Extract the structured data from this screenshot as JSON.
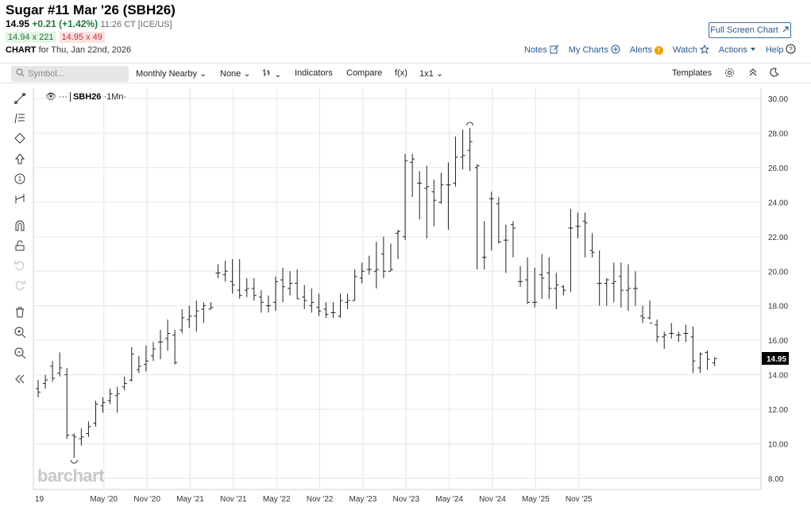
{
  "header": {
    "title": "Sugar #11 Mar '26 (SBH26)",
    "last": "14.95",
    "change": "+0.21 (+1.42%)",
    "time": "11:26 CT [ICE/US]",
    "bid": "14.94 x 221",
    "ask": "14.95 x 49",
    "chart_label": "CHART",
    "chart_for": "for Thu, Jan 22nd, 2026"
  },
  "buttons": {
    "fullscreen": "Full Screen Chart"
  },
  "actions": {
    "notes": "Notes",
    "my_charts": "My Charts",
    "alerts": "Alerts",
    "alerts_badge": "!",
    "watch": "Watch",
    "actions": "Actions",
    "help": "Help"
  },
  "toolbar": {
    "symbol_placeholder": "Symbol...",
    "period": "Monthly Nearby",
    "overlay": "None",
    "indicators": "Indicators",
    "compare": "Compare",
    "fx": "f(x)",
    "layout": "1x1",
    "templates": "Templates"
  },
  "series_label": {
    "eye": "👁",
    "dots": "···",
    "symbol": "SBH26",
    "interval": "·1Mn·"
  },
  "watermark": "barchart",
  "colors": {
    "bar": "#222222",
    "grid": "#e6e6e6",
    "last_price_bg": "#000000",
    "link": "#2b5b8a"
  },
  "chart_data": {
    "type": "ohlc",
    "interval": "monthly",
    "ylim": [
      7,
      31
    ],
    "y_ticks": [
      "8.00",
      "10.00",
      "12.00",
      "14.00",
      "16.00",
      "18.00",
      "20.00",
      "22.00",
      "24.00",
      "26.00",
      "28.00",
      "30.00"
    ],
    "x_ticks": [
      "19",
      "May '20",
      "Nov '20",
      "May '21",
      "Nov '21",
      "May '22",
      "Nov '22",
      "May '23",
      "Nov '23",
      "May '24",
      "Nov '24",
      "May '25",
      "Nov '25"
    ],
    "last_price_label": "14.95",
    "grid": true,
    "bars": [
      {
        "o": 13.2,
        "h": 13.7,
        "l": 12.7,
        "c": 13.0
      },
      {
        "o": 13.5,
        "h": 14.0,
        "l": 13.2,
        "c": 13.7
      },
      {
        "o": 14.5,
        "h": 14.8,
        "l": 13.6,
        "c": 13.8
      },
      {
        "o": 14.1,
        "h": 15.3,
        "l": 13.9,
        "c": 14.4
      },
      {
        "o": 14.0,
        "h": 14.4,
        "l": 10.3,
        "c": 10.5
      },
      {
        "o": 10.5,
        "h": 10.6,
        "l": 9.2,
        "c": 10.4
      },
      {
        "o": 10.3,
        "h": 10.9,
        "l": 9.9,
        "c": 10.4
      },
      {
        "o": 10.6,
        "h": 11.3,
        "l": 10.4,
        "c": 11.0
      },
      {
        "o": 11.2,
        "h": 12.5,
        "l": 11.0,
        "c": 12.3
      },
      {
        "o": 12.2,
        "h": 12.7,
        "l": 11.8,
        "c": 12.4
      },
      {
        "o": 12.5,
        "h": 13.2,
        "l": 12.3,
        "c": 12.9
      },
      {
        "o": 12.8,
        "h": 13.3,
        "l": 11.8,
        "c": 12.9
      },
      {
        "o": 13.3,
        "h": 13.9,
        "l": 13.1,
        "c": 13.5
      },
      {
        "o": 13.7,
        "h": 15.6,
        "l": 13.6,
        "c": 15.2
      },
      {
        "o": 14.3,
        "h": 15.1,
        "l": 14.1,
        "c": 14.5
      },
      {
        "o": 14.6,
        "h": 15.7,
        "l": 14.2,
        "c": 14.8
      },
      {
        "o": 15.1,
        "h": 15.9,
        "l": 14.8,
        "c": 15.5
      },
      {
        "o": 15.9,
        "h": 16.6,
        "l": 14.9,
        "c": 15.9
      },
      {
        "o": 16.1,
        "h": 17.2,
        "l": 15.4,
        "c": 16.4
      },
      {
        "o": 16.3,
        "h": 16.6,
        "l": 14.6,
        "c": 14.7
      },
      {
        "o": 16.6,
        "h": 17.8,
        "l": 16.4,
        "c": 17.3
      },
      {
        "o": 17.2,
        "h": 18.0,
        "l": 16.7,
        "c": 17.4
      },
      {
        "o": 17.4,
        "h": 18.3,
        "l": 16.5,
        "c": 17.7
      },
      {
        "o": 17.8,
        "h": 18.2,
        "l": 17.0,
        "c": 18.0
      },
      {
        "o": 17.8,
        "h": 18.2,
        "l": 17.8,
        "c": 17.9
      },
      {
        "o": 19.9,
        "h": 20.4,
        "l": 19.6,
        "c": 19.9
      },
      {
        "o": 19.8,
        "h": 20.6,
        "l": 19.4,
        "c": 20.0
      },
      {
        "o": 19.4,
        "h": 20.7,
        "l": 18.7,
        "c": 19.2
      },
      {
        "o": 18.9,
        "h": 20.7,
        "l": 18.4,
        "c": 18.6
      },
      {
        "o": 18.9,
        "h": 19.6,
        "l": 18.5,
        "c": 19.0
      },
      {
        "o": 19.0,
        "h": 19.6,
        "l": 18.3,
        "c": 18.6
      },
      {
        "o": 18.5,
        "h": 18.9,
        "l": 17.6,
        "c": 18.2
      },
      {
        "o": 18.0,
        "h": 18.6,
        "l": 17.6,
        "c": 18.0
      },
      {
        "o": 18.2,
        "h": 19.7,
        "l": 17.7,
        "c": 19.4
      },
      {
        "o": 19.5,
        "h": 20.2,
        "l": 18.2,
        "c": 19.1
      },
      {
        "o": 19.0,
        "h": 20.0,
        "l": 18.6,
        "c": 19.3
      },
      {
        "o": 19.3,
        "h": 20.1,
        "l": 18.4,
        "c": 18.4
      },
      {
        "o": 18.5,
        "h": 19.2,
        "l": 17.8,
        "c": 18.3
      },
      {
        "o": 18.0,
        "h": 19.0,
        "l": 17.6,
        "c": 18.2
      },
      {
        "o": 17.9,
        "h": 18.7,
        "l": 17.4,
        "c": 17.7
      },
      {
        "o": 17.8,
        "h": 18.2,
        "l": 17.3,
        "c": 17.5
      },
      {
        "o": 17.6,
        "h": 18.2,
        "l": 17.3,
        "c": 17.6
      },
      {
        "o": 17.4,
        "h": 18.7,
        "l": 17.3,
        "c": 18.3
      },
      {
        "o": 18.2,
        "h": 18.7,
        "l": 17.8,
        "c": 18.3
      },
      {
        "o": 18.3,
        "h": 20.1,
        "l": 18.3,
        "c": 19.7
      },
      {
        "o": 19.6,
        "h": 20.5,
        "l": 19.3,
        "c": 20.0
      },
      {
        "o": 20.1,
        "h": 20.9,
        "l": 19.8,
        "c": 20.1
      },
      {
        "o": 20.0,
        "h": 21.7,
        "l": 19.0,
        "c": 20.1
      },
      {
        "o": 21.0,
        "h": 22.0,
        "l": 19.6,
        "c": 20.0
      },
      {
        "o": 20.0,
        "h": 21.6,
        "l": 20.0,
        "c": 20.1
      },
      {
        "o": 22.2,
        "h": 22.4,
        "l": 20.7,
        "c": 22.3
      },
      {
        "o": 22.0,
        "h": 26.8,
        "l": 21.8,
        "c": 26.4
      },
      {
        "o": 26.3,
        "h": 26.8,
        "l": 24.3,
        "c": 26.5
      },
      {
        "o": 25.1,
        "h": 25.8,
        "l": 23.0,
        "c": 25.1
      },
      {
        "o": 24.8,
        "h": 26.1,
        "l": 21.9,
        "c": 24.9
      },
      {
        "o": 24.6,
        "h": 25.3,
        "l": 22.6,
        "c": 24.1
      },
      {
        "o": 24.0,
        "h": 25.7,
        "l": 23.9,
        "c": 25.0
      },
      {
        "o": 25.0,
        "h": 26.3,
        "l": 22.4,
        "c": 25.0
      },
      {
        "o": 25.1,
        "h": 27.8,
        "l": 24.9,
        "c": 26.6
      },
      {
        "o": 26.6,
        "h": 28.2,
        "l": 25.9,
        "c": 26.7
      },
      {
        "o": 27.0,
        "h": 28.3,
        "l": 25.8,
        "c": 27.5
      },
      {
        "o": 26.0,
        "h": 26.2,
        "l": 20.1,
        "c": 26.1
      },
      {
        "o": 20.8,
        "h": 22.9,
        "l": 20.1,
        "c": 20.8
      },
      {
        "o": 24.2,
        "h": 24.6,
        "l": 21.2,
        "c": 24.2
      },
      {
        "o": 23.9,
        "h": 24.3,
        "l": 21.6,
        "c": 21.7
      },
      {
        "o": 21.8,
        "h": 22.7,
        "l": 19.9,
        "c": 21.8
      },
      {
        "o": 22.7,
        "h": 22.9,
        "l": 20.8,
        "c": 22.5
      },
      {
        "o": 19.4,
        "h": 20.3,
        "l": 19.1,
        "c": 19.4
      },
      {
        "o": 19.5,
        "h": 20.8,
        "l": 18.1,
        "c": 18.2
      },
      {
        "o": 18.2,
        "h": 20.2,
        "l": 17.9,
        "c": 18.2
      },
      {
        "o": 19.8,
        "h": 21.0,
        "l": 18.4,
        "c": 19.6
      },
      {
        "o": 19.9,
        "h": 20.8,
        "l": 18.4,
        "c": 19.0
      },
      {
        "o": 19.0,
        "h": 19.9,
        "l": 17.8,
        "c": 19.2
      },
      {
        "o": 19.1,
        "h": 19.2,
        "l": 18.6,
        "c": 18.9
      },
      {
        "o": 22.5,
        "h": 23.6,
        "l": 18.8,
        "c": 22.5
      },
      {
        "o": 22.6,
        "h": 23.4,
        "l": 21.9,
        "c": 22.6
      },
      {
        "o": 22.9,
        "h": 23.4,
        "l": 20.8,
        "c": 22.8
      },
      {
        "o": 21.2,
        "h": 22.2,
        "l": 20.8,
        "c": 21.1
      },
      {
        "o": 19.3,
        "h": 21.2,
        "l": 18.0,
        "c": 19.3
      },
      {
        "o": 19.3,
        "h": 19.6,
        "l": 18.0,
        "c": 19.5
      },
      {
        "o": 19.3,
        "h": 20.5,
        "l": 18.2,
        "c": 19.4
      },
      {
        "o": 19.7,
        "h": 20.5,
        "l": 17.9,
        "c": 18.9
      },
      {
        "o": 18.9,
        "h": 20.4,
        "l": 17.7,
        "c": 19.0
      },
      {
        "o": 19.0,
        "h": 20.0,
        "l": 18.0,
        "c": 19.0
      },
      {
        "o": 17.4,
        "h": 18.0,
        "l": 17.0,
        "c": 17.3
      },
      {
        "o": 17.3,
        "h": 18.3,
        "l": 17.2,
        "c": 17.0
      },
      {
        "o": 16.9,
        "h": 17.2,
        "l": 15.9,
        "c": 16.2
      },
      {
        "o": 16.2,
        "h": 16.5,
        "l": 15.5,
        "c": 16.3
      },
      {
        "o": 16.4,
        "h": 17.0,
        "l": 16.1,
        "c": 16.4
      },
      {
        "o": 16.3,
        "h": 16.5,
        "l": 15.9,
        "c": 16.3
      },
      {
        "o": 16.4,
        "h": 16.9,
        "l": 15.9,
        "c": 16.4
      },
      {
        "o": 16.2,
        "h": 16.8,
        "l": 14.1,
        "c": 14.8
      },
      {
        "o": 14.4,
        "h": 15.3,
        "l": 14.1,
        "c": 15.2
      },
      {
        "o": 15.3,
        "h": 15.4,
        "l": 14.3,
        "c": 14.9
      },
      {
        "o": 14.7,
        "h": 15.0,
        "l": 14.5,
        "c": 14.95
      }
    ]
  }
}
